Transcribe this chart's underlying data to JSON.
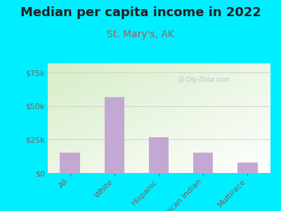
{
  "title": "Median per capita income in 2022",
  "subtitle": "St. Mary's, AK",
  "categories": [
    "All",
    "White",
    "Hispanic",
    "American Indian",
    "Multirace"
  ],
  "values": [
    15000,
    57000,
    27000,
    15000,
    8000
  ],
  "bar_color": "#c4a8d4",
  "background_outer": "#00eeff",
  "background_inner_top_left": "#d4eec8",
  "background_inner_bottom_right": "#f8fff8",
  "title_color": "#222222",
  "subtitle_color": "#9b6060",
  "tick_label_color": "#7a6060",
  "yticks": [
    0,
    25000,
    50000,
    75000
  ],
  "ylim": [
    0,
    82000
  ],
  "watermark": "City-Data.com",
  "title_fontsize": 13,
  "subtitle_fontsize": 10,
  "tick_fontsize": 8,
  "xtick_fontsize": 8
}
